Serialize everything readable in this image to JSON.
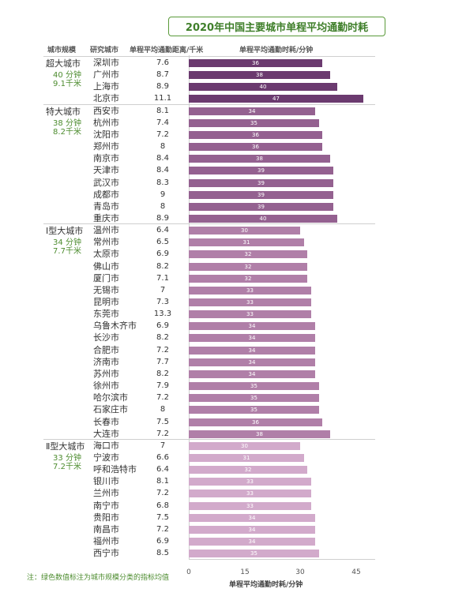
{
  "title": "2020年中国主要城市单程平均通勤时耗",
  "headers": {
    "scale": "城市规模",
    "city": "研究城市",
    "distance": "单程平均通勤距离/千米",
    "time": "单程平均通勤时耗/分钟"
  },
  "groups": [
    {
      "name": "超大城市",
      "avg_time": "40 分钟",
      "avg_dist": "9.1千米"
    },
    {
      "name": "特大城市",
      "avg_time": "38 分钟",
      "avg_dist": "8.2千米"
    },
    {
      "name": "Ⅰ型大城市",
      "avg_time": "34 分钟",
      "avg_dist": "7.7千米"
    },
    {
      "name": "Ⅱ型大城市",
      "avg_time": "33 分钟",
      "avg_dist": "7.2千米"
    }
  ],
  "note": "注：绿色数值标注为城市规模分类的指标均值",
  "colors": {
    "super": "#6b3a6f",
    "mega": "#946190",
    "large1": "#b07fa8",
    "large2": "#d2aacb",
    "title_green": "#3f7f2a",
    "avg_green": "#4d8c2f"
  },
  "chart_data": {
    "type": "bar",
    "orientation": "horizontal",
    "xlabel": "单程平均通勤时耗/分钟",
    "xlim": [
      0,
      50
    ],
    "xticks": [
      "0",
      "15",
      "30",
      "45"
    ],
    "rows": [
      {
        "group": 0,
        "city": "深圳市",
        "distance": "7.6",
        "time": 36
      },
      {
        "group": 0,
        "city": "广州市",
        "distance": "8.7",
        "time": 38
      },
      {
        "group": 0,
        "city": "上海市",
        "distance": "8.9",
        "time": 40
      },
      {
        "group": 0,
        "city": "北京市",
        "distance": "11.1",
        "time": 47
      },
      {
        "group": 1,
        "city": "西安市",
        "distance": "8.1",
        "time": 34
      },
      {
        "group": 1,
        "city": "杭州市",
        "distance": "7.4",
        "time": 35
      },
      {
        "group": 1,
        "city": "沈阳市",
        "distance": "7.2",
        "time": 36
      },
      {
        "group": 1,
        "city": "郑州市",
        "distance": "8",
        "time": 36
      },
      {
        "group": 1,
        "city": "南京市",
        "distance": "8.4",
        "time": 38
      },
      {
        "group": 1,
        "city": "天津市",
        "distance": "8.4",
        "time": 39
      },
      {
        "group": 1,
        "city": "武汉市",
        "distance": "8.3",
        "time": 39
      },
      {
        "group": 1,
        "city": "成都市",
        "distance": "9",
        "time": 39
      },
      {
        "group": 1,
        "city": "青岛市",
        "distance": "8",
        "time": 39
      },
      {
        "group": 1,
        "city": "重庆市",
        "distance": "8.9",
        "time": 40
      },
      {
        "group": 2,
        "city": "温州市",
        "distance": "6.4",
        "time": 30
      },
      {
        "group": 2,
        "city": "常州市",
        "distance": "6.5",
        "time": 31
      },
      {
        "group": 2,
        "city": "太原市",
        "distance": "6.9",
        "time": 32
      },
      {
        "group": 2,
        "city": "佛山市",
        "distance": "8.2",
        "time": 32
      },
      {
        "group": 2,
        "city": "厦门市",
        "distance": "7.1",
        "time": 32
      },
      {
        "group": 2,
        "city": "无锡市",
        "distance": "7",
        "time": 33
      },
      {
        "group": 2,
        "city": "昆明市",
        "distance": "7.3",
        "time": 33
      },
      {
        "group": 2,
        "city": "东莞市",
        "distance": "13.3",
        "time": 33
      },
      {
        "group": 2,
        "city": "乌鲁木齐市",
        "distance": "6.9",
        "time": 34
      },
      {
        "group": 2,
        "city": "长沙市",
        "distance": "8.2",
        "time": 34
      },
      {
        "group": 2,
        "city": "合肥市",
        "distance": "7.2",
        "time": 34
      },
      {
        "group": 2,
        "city": "济南市",
        "distance": "7.7",
        "time": 34
      },
      {
        "group": 2,
        "city": "苏州市",
        "distance": "8.2",
        "time": 34
      },
      {
        "group": 2,
        "city": "徐州市",
        "distance": "7.9",
        "time": 35
      },
      {
        "group": 2,
        "city": "哈尔滨市",
        "distance": "7.2",
        "time": 35
      },
      {
        "group": 2,
        "city": "石家庄市",
        "distance": "8",
        "time": 35
      },
      {
        "group": 2,
        "city": "长春市",
        "distance": "7.5",
        "time": 36
      },
      {
        "group": 2,
        "city": "大连市",
        "distance": "7.2",
        "time": 38
      },
      {
        "group": 3,
        "city": "海口市",
        "distance": "7",
        "time": 30
      },
      {
        "group": 3,
        "city": "宁波市",
        "distance": "6.6",
        "time": 31
      },
      {
        "group": 3,
        "city": "呼和浩特市",
        "distance": "6.4",
        "time": 32
      },
      {
        "group": 3,
        "city": "银川市",
        "distance": "8.1",
        "time": 33
      },
      {
        "group": 3,
        "city": "兰州市",
        "distance": "7.2",
        "time": 33
      },
      {
        "group": 3,
        "city": "南宁市",
        "distance": "6.8",
        "time": 33
      },
      {
        "group": 3,
        "city": "贵阳市",
        "distance": "7.5",
        "time": 34
      },
      {
        "group": 3,
        "city": "南昌市",
        "distance": "7.2",
        "time": 34
      },
      {
        "group": 3,
        "city": "福州市",
        "distance": "6.9",
        "time": 34
      },
      {
        "group": 3,
        "city": "西宁市",
        "distance": "8.5",
        "time": 35
      }
    ]
  }
}
